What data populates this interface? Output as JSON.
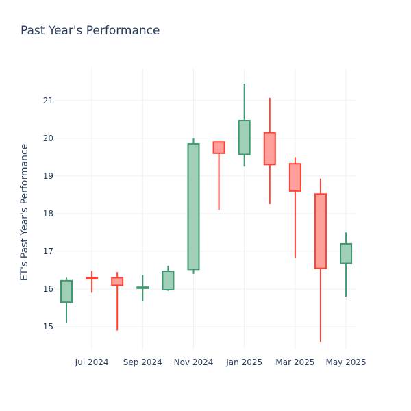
{
  "chart_data": {
    "type": "candlestick",
    "title": "Past Year's Performance",
    "ylabel": "ET's Past Year's Performance",
    "xlabel": "",
    "ylim": [
      14.4,
      21.85
    ],
    "yticks": [
      15,
      16,
      17,
      18,
      19,
      20,
      21
    ],
    "xticks": [
      {
        "label": "Jul 2024",
        "index": 1
      },
      {
        "label": "Sep 2024",
        "index": 3
      },
      {
        "label": "Nov 2024",
        "index": 5
      },
      {
        "label": "Jan 2025",
        "index": 7
      },
      {
        "label": "Mar 2025",
        "index": 9
      },
      {
        "label": "May 2025",
        "index": 11
      }
    ],
    "candles": [
      {
        "open": 15.65,
        "high": 16.3,
        "low": 15.1,
        "close": 16.22
      },
      {
        "open": 16.3,
        "high": 16.48,
        "low": 15.9,
        "close": 16.27
      },
      {
        "open": 16.3,
        "high": 16.45,
        "low": 14.9,
        "close": 16.1
      },
      {
        "open": 16.02,
        "high": 16.37,
        "low": 15.67,
        "close": 16.05
      },
      {
        "open": 15.98,
        "high": 16.62,
        "low": 15.95,
        "close": 16.47
      },
      {
        "open": 16.52,
        "high": 20.0,
        "low": 16.4,
        "close": 19.85
      },
      {
        "open": 19.9,
        "high": 19.9,
        "low": 18.1,
        "close": 19.6
      },
      {
        "open": 19.57,
        "high": 21.45,
        "low": 19.25,
        "close": 20.47
      },
      {
        "open": 20.15,
        "high": 21.07,
        "low": 18.25,
        "close": 19.3
      },
      {
        "open": 19.32,
        "high": 19.5,
        "low": 16.83,
        "close": 18.6
      },
      {
        "open": 18.52,
        "high": 18.93,
        "low": 14.6,
        "close": 16.55
      },
      {
        "open": 16.68,
        "high": 17.5,
        "low": 15.8,
        "close": 17.2
      }
    ],
    "colors": {
      "increasing_line": "#3d9970",
      "increasing_fill": "#9fcfb6",
      "decreasing_line": "#ff4136",
      "decreasing_fill": "#ffa09b"
    },
    "grid": true,
    "legend": "none"
  }
}
